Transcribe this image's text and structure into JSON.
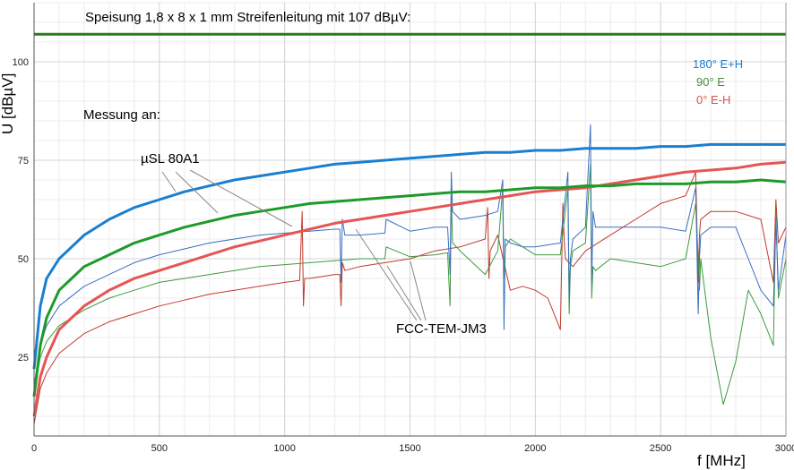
{
  "chart_data": {
    "type": "line",
    "title": "Speisung 1,8 x 8 x 1 mm Streifenleitung mit 107 dBµV:",
    "xlabel": "f [MHz]",
    "ylabel": "U [dBµV]",
    "xlim": [
      0,
      3000
    ],
    "ylim": [
      5,
      115
    ],
    "xticks": [
      0,
      500,
      1000,
      1500,
      2000,
      2500,
      3000
    ],
    "yticks": [
      25,
      50,
      75,
      100
    ],
    "grid": true,
    "legend_position": "top-right",
    "reference_level": 107,
    "annotations": {
      "measure_on": "Messung an:",
      "probe_a": "µSL 80A1",
      "probe_b": "FCC-TEM-JM3"
    },
    "legend": [
      {
        "label": "180° E+H",
        "color": "#1a7fd0"
      },
      {
        "label": "90° E",
        "color": "#4a8a3a"
      },
      {
        "label": "0°  E-H",
        "color": "#d9534f"
      }
    ],
    "series": [
      {
        "name": "180° E+H",
        "probe": "µSL 80A1",
        "color": "#1a7fd0",
        "width": 3,
        "x": [
          0,
          25,
          50,
          100,
          150,
          200,
          300,
          400,
          500,
          600,
          700,
          800,
          900,
          1000,
          1100,
          1200,
          1300,
          1400,
          1500,
          1600,
          1700,
          1800,
          1900,
          2000,
          2100,
          2200,
          2300,
          2400,
          2500,
          2600,
          2700,
          2800,
          2900,
          3000
        ],
        "y": [
          22,
          38,
          45,
          50,
          53,
          56,
          60,
          63,
          65,
          67,
          68.5,
          70,
          71,
          72,
          73,
          74,
          74.5,
          75,
          75.5,
          76,
          76.5,
          77,
          77,
          77.5,
          77.5,
          78,
          78,
          78,
          78.5,
          78.5,
          79,
          79,
          79,
          79
        ]
      },
      {
        "name": "90° E",
        "probe": "µSL 80A1",
        "color": "#1e9a2a",
        "width": 3,
        "x": [
          0,
          25,
          50,
          100,
          150,
          200,
          300,
          400,
          500,
          600,
          700,
          800,
          900,
          1000,
          1100,
          1200,
          1300,
          1400,
          1500,
          1600,
          1700,
          1800,
          1900,
          2000,
          2100,
          2200,
          2300,
          2400,
          2500,
          2600,
          2700,
          2800,
          2900,
          3000
        ],
        "y": [
          15,
          28,
          35,
          42,
          45,
          48,
          51,
          54,
          56,
          58,
          59.5,
          61,
          62,
          63,
          64,
          64.5,
          65,
          65.5,
          66,
          66.5,
          67,
          67,
          67.5,
          68,
          68,
          68.5,
          68.5,
          69,
          69,
          69,
          69.5,
          69.5,
          70,
          69.5
        ]
      },
      {
        "name": "0°  E-H",
        "probe": "µSL 80A1",
        "color": "#e55555",
        "width": 3,
        "x": [
          0,
          25,
          50,
          100,
          150,
          200,
          300,
          400,
          500,
          600,
          700,
          800,
          900,
          1000,
          1100,
          1200,
          1300,
          1400,
          1500,
          1600,
          1700,
          1800,
          1900,
          2000,
          2100,
          2200,
          2300,
          2400,
          2500,
          2600,
          2700,
          2800,
          2900,
          3000
        ],
        "y": [
          10,
          20,
          25,
          32,
          35,
          38,
          42,
          45,
          47,
          49,
          51,
          53,
          54.5,
          56,
          57.5,
          59,
          60,
          61,
          62,
          63,
          64,
          65,
          66,
          67,
          67.5,
          68,
          69,
          70,
          71,
          72,
          72.5,
          73,
          74,
          74.5
        ]
      },
      {
        "name": "180° E+H",
        "probe": "FCC-TEM-JM3",
        "color": "#3a6fc0",
        "width": 1,
        "x": [
          0,
          25,
          50,
          100,
          200,
          300,
          400,
          500,
          600,
          700,
          800,
          900,
          1000,
          1100,
          1200,
          1220,
          1225,
          1230,
          1240,
          1300,
          1400,
          1405,
          1500,
          1600,
          1650,
          1660,
          1665,
          1670,
          1700,
          1800,
          1850,
          1870,
          1875,
          1880,
          1900,
          1950,
          2000,
          2100,
          2130,
          2135,
          2140,
          2150,
          2200,
          2220,
          2225,
          2230,
          2240,
          2300,
          2400,
          2500,
          2600,
          2640,
          2650,
          2655,
          2660,
          2700,
          2800,
          2850,
          2900,
          2950,
          2960,
          2970,
          3000
        ],
        "y": [
          18,
          28,
          33,
          38,
          43,
          46,
          49,
          51,
          52.5,
          54,
          55,
          56,
          56.5,
          57,
          57.5,
          57.5,
          44,
          60,
          56,
          56,
          56.5,
          60,
          57,
          58,
          58,
          46,
          72,
          62,
          60,
          61,
          62,
          70,
          32,
          55,
          54,
          53,
          53,
          54,
          72,
          40,
          50,
          55,
          58,
          84,
          44,
          62,
          58,
          58,
          58,
          58,
          57,
          68,
          36,
          50,
          56,
          58,
          58,
          50,
          42,
          38,
          60,
          42,
          56
        ]
      },
      {
        "name": "90° E",
        "probe": "FCC-TEM-JM3",
        "color": "#3e9a3e",
        "width": 1,
        "x": [
          0,
          25,
          50,
          100,
          200,
          300,
          400,
          500,
          600,
          700,
          800,
          900,
          1000,
          1100,
          1200,
          1300,
          1400,
          1405,
          1500,
          1600,
          1650,
          1660,
          1665,
          1670,
          1700,
          1800,
          1850,
          1870,
          1875,
          1880,
          1900,
          1950,
          2000,
          2100,
          2130,
          2135,
          2140,
          2150,
          2200,
          2220,
          2225,
          2230,
          2240,
          2300,
          2400,
          2500,
          2600,
          2640,
          2650,
          2655,
          2660,
          2700,
          2750,
          2800,
          2850,
          2900,
          2950,
          2960,
          2970,
          3000
        ],
        "y": [
          16,
          25,
          29,
          33,
          37,
          40,
          42,
          44,
          45,
          46,
          47,
          48,
          48.5,
          49,
          49.5,
          50,
          50,
          53,
          50.5,
          51,
          51.5,
          38,
          66,
          54,
          52,
          46,
          52,
          68,
          45,
          53,
          55,
          53,
          51,
          51,
          68,
          36,
          48,
          52,
          54,
          74,
          40,
          48,
          47,
          50,
          49,
          48,
          50,
          64,
          50,
          42,
          50,
          30,
          13,
          24,
          42,
          36,
          28,
          62,
          40,
          50
        ]
      },
      {
        "name": "0°  E-H",
        "probe": "FCC-TEM-JM3",
        "color": "#c0392b",
        "width": 1,
        "x": [
          0,
          25,
          50,
          100,
          200,
          300,
          400,
          500,
          600,
          700,
          800,
          900,
          1000,
          1060,
          1070,
          1075,
          1080,
          1100,
          1200,
          1220,
          1225,
          1230,
          1240,
          1300,
          1400,
          1500,
          1600,
          1700,
          1800,
          1810,
          1815,
          1820,
          1850,
          1900,
          1950,
          2000,
          2050,
          2100,
          2110,
          2115,
          2120,
          2150,
          2200,
          2300,
          2400,
          2500,
          2600,
          2640,
          2650,
          2655,
          2660,
          2700,
          2800,
          2900,
          2950,
          2960,
          2970,
          3000
        ],
        "y": [
          8,
          17,
          21,
          26,
          31,
          34,
          36,
          38,
          39.5,
          41,
          42,
          43,
          44,
          44.5,
          62,
          38,
          45,
          45,
          46,
          46,
          38,
          49,
          47,
          48,
          49,
          50,
          52,
          53,
          55,
          63,
          45,
          52,
          56,
          42,
          43,
          42,
          40,
          32,
          64,
          55,
          50,
          48,
          52,
          56,
          60,
          64,
          66,
          72,
          44,
          56,
          60,
          62,
          62,
          60,
          44,
          65,
          54,
          58
        ]
      }
    ]
  }
}
